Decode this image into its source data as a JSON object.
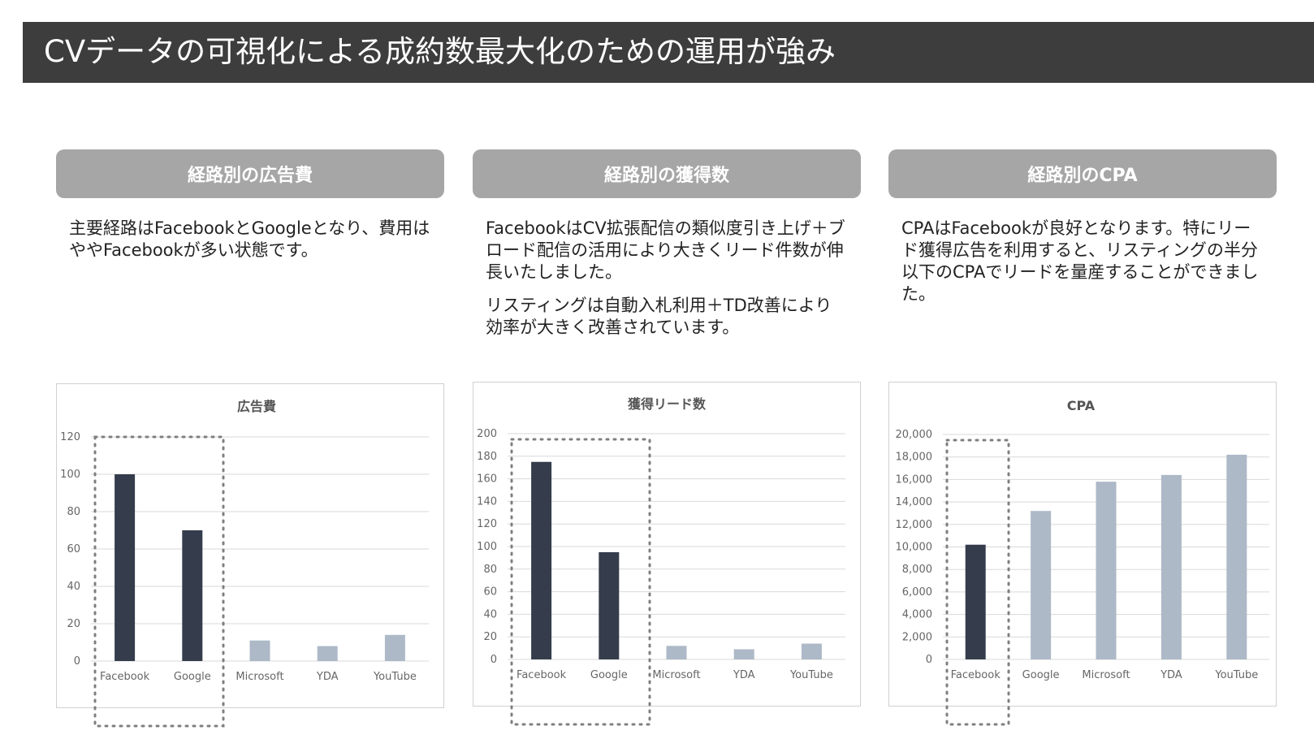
{
  "header": {
    "title": "CVデータの可視化による成約数最大化のための運用が強み"
  },
  "columns": [
    {
      "heading": "経路別の広告費",
      "paragraphs": [
        "主要経路はFacebookとGoogleとなり、費用はややFacebookが多い状態です。"
      ]
    },
    {
      "heading": "経路別の獲得数",
      "paragraphs": [
        "FacebookはCV拡張配信の類似度引き上げ＋ブロード配信の活用により大きくリード件数が伸長いたしました。",
        "リスティングは自動入札利用＋TD改善により効率が大きく改善されています。"
      ]
    },
    {
      "heading": "経路別のCPA",
      "paragraphs": [
        "CPAはFacebookが良好となります。特にリード獲得広告を利用すると、リスティングの半分以下のCPAでリードを量産することができました。"
      ]
    }
  ],
  "colors": {
    "highlight": "#353d4c",
    "muted": "#adb9c7",
    "grid": "#d9d9d9",
    "dotted": "#7f7f7f"
  },
  "chart_data": [
    {
      "type": "bar",
      "title": "広告費",
      "categories": [
        "Facebook",
        "Google",
        "Microsoft",
        "YDA",
        "YouTube"
      ],
      "values": [
        100,
        70,
        11,
        8,
        14
      ],
      "ylim": [
        0,
        120
      ],
      "yticks": [
        "0",
        "20",
        "40",
        "60",
        "80",
        "100",
        "120"
      ],
      "highlighted": [
        "Facebook",
        "Google"
      ],
      "grid": true
    },
    {
      "type": "bar",
      "title": "獲得リード数",
      "categories": [
        "Facebook",
        "Google",
        "Microsoft",
        "YDA",
        "YouTube"
      ],
      "values": [
        175,
        95,
        12,
        9,
        14
      ],
      "ylim": [
        0,
        200
      ],
      "yticks": [
        "0",
        "20",
        "40",
        "60",
        "80",
        "100",
        "120",
        "140",
        "160",
        "180",
        "200"
      ],
      "highlighted": [
        "Facebook",
        "Google"
      ],
      "grid": true
    },
    {
      "type": "bar",
      "title": "CPA",
      "categories": [
        "Facebook",
        "Google",
        "Microsoft",
        "YDA",
        "YouTube"
      ],
      "values": [
        10200,
        13200,
        15800,
        16400,
        18200
      ],
      "ylim": [
        0,
        20000
      ],
      "yticks": [
        "0",
        "2,000",
        "4,000",
        "6,000",
        "8,000",
        "10,000",
        "12,000",
        "14,000",
        "16,000",
        "18,000",
        "20,000"
      ],
      "highlighted": [
        "Facebook"
      ],
      "grid": true
    }
  ]
}
